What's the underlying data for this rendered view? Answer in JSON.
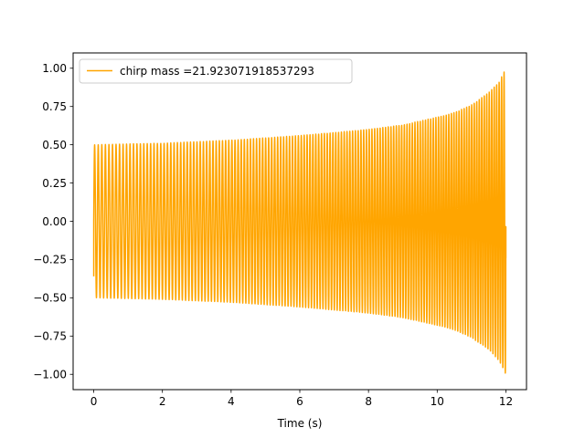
{
  "chart_data": {
    "type": "line",
    "title": "",
    "xlabel": "Time (s)",
    "ylabel": "",
    "xlim": [
      -0.6,
      12.6
    ],
    "ylim": [
      -1.1,
      1.1
    ],
    "xticks": [
      0,
      2,
      4,
      6,
      8,
      10,
      12
    ],
    "xtick_labels": [
      "0",
      "2",
      "4",
      "6",
      "8",
      "10",
      "12"
    ],
    "yticks": [
      -1.0,
      -0.75,
      -0.5,
      -0.25,
      0.0,
      0.25,
      0.5,
      0.75,
      1.0
    ],
    "ytick_labels": [
      "−1.00",
      "−0.75",
      "−0.50",
      "−0.25",
      "0.00",
      "0.25",
      "0.50",
      "0.75",
      "1.00"
    ],
    "grid": false,
    "legend_position": "upper-left",
    "series": [
      {
        "name": "chirp mass =21.923071918537293",
        "color": "#FFA500",
        "x_start": 0,
        "x_end": 12.0,
        "amplitude_envelope": {
          "x": [
            0,
            2,
            4,
            6,
            8,
            9,
            10,
            10.5,
            11,
            11.5,
            11.8,
            12.0
          ],
          "amplitude": [
            0.5,
            0.51,
            0.53,
            0.56,
            0.6,
            0.63,
            0.68,
            0.71,
            0.76,
            0.84,
            0.91,
            1.0
          ]
        },
        "oscillation_frequency_hz": {
          "x": [
            0,
            12.0
          ],
          "frequency": [
            9.5,
            14.0
          ]
        },
        "start_value": -0.36,
        "end_value": -0.24
      }
    ]
  }
}
